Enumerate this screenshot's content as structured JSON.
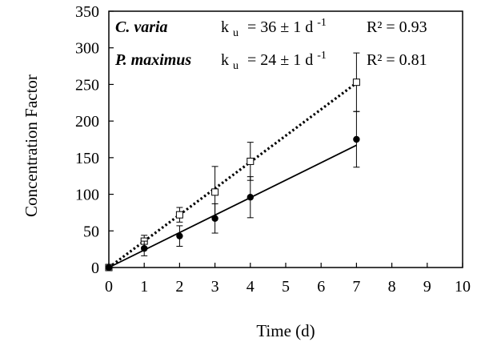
{
  "chart_data": {
    "type": "scatter",
    "xlabel": "Time (d)",
    "ylabel": "Concentration Factor",
    "xlim": [
      0,
      10
    ],
    "ylim": [
      0,
      350
    ],
    "xticks": [
      "0",
      "1",
      "2",
      "3",
      "4",
      "5",
      "6",
      "7",
      "8",
      "9",
      "10"
    ],
    "yticks": [
      "0",
      "50",
      "100",
      "150",
      "200",
      "250",
      "300",
      "350"
    ],
    "grid": false,
    "legend_position": "top-left",
    "series": [
      {
        "name": "C. varia",
        "ku_label": "k",
        "ku_sub": "u",
        "ku_value": "= 36 ± 1 d",
        "ku_sup": "-1",
        "r2": "R² = 0.93",
        "marker": "open-square",
        "line_style": "dotted",
        "color": "#000000",
        "x": [
          0,
          1,
          2,
          3,
          4,
          7
        ],
        "y": [
          0,
          36,
          72,
          103,
          145,
          253
        ],
        "err": [
          0,
          8,
          10,
          35,
          26,
          40
        ],
        "fit": {
          "x": [
            0,
            7
          ],
          "y": [
            0,
            252
          ]
        }
      },
      {
        "name": "P. maximus",
        "ku_label": "k",
        "ku_sub": "u",
        "ku_value": "= 24 ± 1 d",
        "ku_sup": "-1",
        "r2": "R² = 0.81",
        "marker": "filled-circle",
        "line_style": "solid",
        "color": "#000000",
        "x": [
          0,
          1,
          2,
          3,
          4,
          7
        ],
        "y": [
          0,
          26,
          43,
          67,
          96,
          175
        ],
        "err": [
          0,
          10,
          14,
          20,
          28,
          38
        ],
        "fit": {
          "x": [
            0,
            7
          ],
          "y": [
            0,
            167
          ]
        }
      }
    ]
  }
}
